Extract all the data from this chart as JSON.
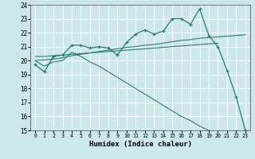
{
  "xlabel": "Humidex (Indice chaleur)",
  "xlim": [
    -0.5,
    23.5
  ],
  "ylim": [
    15,
    24
  ],
  "yticks": [
    15,
    16,
    17,
    18,
    19,
    20,
    21,
    22,
    23,
    24
  ],
  "xticks": [
    0,
    1,
    2,
    3,
    4,
    5,
    6,
    7,
    8,
    9,
    10,
    11,
    12,
    13,
    14,
    15,
    16,
    17,
    18,
    19,
    20,
    21,
    22,
    23
  ],
  "bg_color": "#cce8e8",
  "grid_color": "#ffffff",
  "line_color": "#2a7d6e",
  "line1_x": [
    0,
    1,
    2,
    3,
    4,
    5,
    6,
    7,
    8,
    9,
    10,
    11,
    12,
    13,
    14,
    15,
    16,
    17,
    18,
    19,
    20,
    21,
    22,
    23
  ],
  "line1_y": [
    19.7,
    19.2,
    20.3,
    20.4,
    21.1,
    21.1,
    20.9,
    21.0,
    20.9,
    20.4,
    21.3,
    21.9,
    22.2,
    21.9,
    22.1,
    23.0,
    23.0,
    22.6,
    23.7,
    21.8,
    21.0,
    19.3,
    17.4,
    15.0
  ],
  "line2_x": [
    0,
    1,
    2,
    3,
    4,
    5,
    6,
    7,
    8,
    9,
    10,
    11,
    12,
    13,
    14,
    15,
    16,
    17,
    18,
    19,
    20,
    21,
    22,
    23
  ],
  "line2_y": [
    20.0,
    20.05,
    20.1,
    20.2,
    20.35,
    20.45,
    20.55,
    20.65,
    20.75,
    20.85,
    20.95,
    21.0,
    21.1,
    21.15,
    21.25,
    21.35,
    21.45,
    21.5,
    21.6,
    21.65,
    21.7,
    21.75,
    21.8,
    21.85
  ],
  "line3_x": [
    0,
    1,
    2,
    3,
    4,
    5,
    6,
    7,
    8,
    9,
    10,
    11,
    12,
    13,
    14,
    15,
    16,
    17,
    18,
    19,
    20
  ],
  "line3_y": [
    20.3,
    20.3,
    20.35,
    20.4,
    20.45,
    20.5,
    20.55,
    20.6,
    20.65,
    20.7,
    20.75,
    20.8,
    20.85,
    20.9,
    20.95,
    21.0,
    21.05,
    21.1,
    21.15,
    21.2,
    21.25
  ],
  "line4_x": [
    0,
    1,
    2,
    3,
    4,
    5,
    6,
    7,
    8,
    9,
    10,
    11,
    12,
    13,
    14,
    15,
    16,
    17,
    18,
    19,
    20,
    21,
    22,
    23
  ],
  "line4_y": [
    20.0,
    19.6,
    19.9,
    20.0,
    20.6,
    20.3,
    19.9,
    19.6,
    19.2,
    18.8,
    18.4,
    18.0,
    17.6,
    17.2,
    16.8,
    16.4,
    16.0,
    15.7,
    15.3,
    15.0,
    14.9,
    14.8,
    14.8,
    14.8
  ]
}
